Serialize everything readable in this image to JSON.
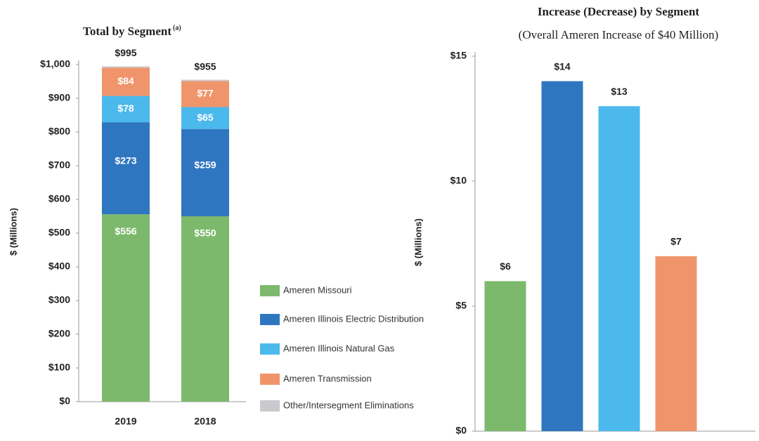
{
  "chart_data": [
    {
      "type": "stacked_bar",
      "title": "Total by Segment",
      "title_superscript": "(a)",
      "ylabel": "$ (Millions)",
      "categories": [
        "2019",
        "2018"
      ],
      "series": [
        {
          "name": "Ameren Missouri",
          "color": "#7cb96c",
          "values": [
            556,
            550
          ],
          "value_labels": [
            "$556",
            "$550"
          ]
        },
        {
          "name": "Ameren Illinois Electric Distribution",
          "color": "#2f76c1",
          "values": [
            273,
            259
          ],
          "value_labels": [
            "$273",
            "$259"
          ]
        },
        {
          "name": "Ameren Illinois Natural Gas",
          "color": "#4cb9ec",
          "values": [
            78,
            65
          ],
          "value_labels": [
            "$78",
            "$65"
          ]
        },
        {
          "name": "Ameren Transmission",
          "color": "#f0956b",
          "values": [
            84,
            77
          ],
          "value_labels": [
            "$84",
            "$77"
          ]
        },
        {
          "name": "Other/Intersegment Eliminations",
          "color": "#c9c9ce",
          "values": [
            4,
            4
          ]
        }
      ],
      "totals": {
        "values": [
          995,
          955
        ],
        "value_labels": [
          "$995",
          "$955"
        ]
      },
      "ylim": [
        0,
        1000
      ],
      "yticks": [
        {
          "value": 0,
          "label": "$0"
        },
        {
          "value": 100,
          "label": "$100"
        },
        {
          "value": 200,
          "label": "$200"
        },
        {
          "value": 300,
          "label": "$300"
        },
        {
          "value": 400,
          "label": "$400"
        },
        {
          "value": 500,
          "label": "$500"
        },
        {
          "value": 600,
          "label": "$600"
        },
        {
          "value": 700,
          "label": "$700"
        },
        {
          "value": 800,
          "label": "$800"
        },
        {
          "value": 900,
          "label": "$900"
        },
        {
          "value": 1000,
          "label": "$1,000"
        }
      ],
      "grid": false,
      "legend": "right"
    },
    {
      "type": "bar",
      "title": "Increase (Decrease) by Segment",
      "subtitle": "(Overall Ameren Increase of $40 Million)",
      "ylabel": "$ (Millions)",
      "categories": [
        null,
        null,
        null,
        null
      ],
      "values": [
        6,
        14,
        13,
        7
      ],
      "value_labels": [
        "$6",
        "$14",
        "$13",
        "$7"
      ],
      "colors": [
        "#7cb96c",
        "#2f76c1",
        "#4cb9ec",
        "#f0956b"
      ],
      "ylim": [
        0,
        15
      ],
      "yticks": [
        {
          "value": 0,
          "label": "$0"
        },
        {
          "value": 5,
          "label": "$5"
        },
        {
          "value": 10,
          "label": "$10"
        },
        {
          "value": 15,
          "label": "$15"
        }
      ],
      "grid": false
    }
  ]
}
